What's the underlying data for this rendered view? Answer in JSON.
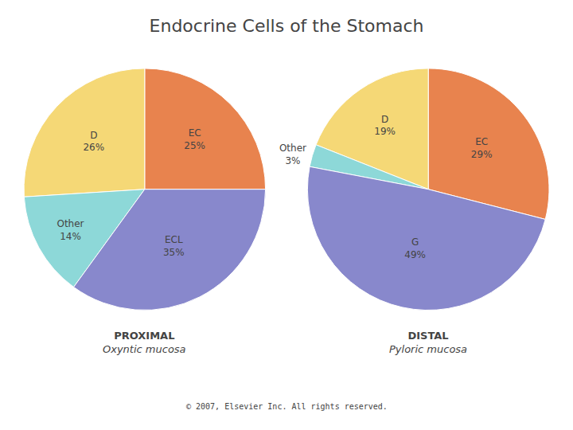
{
  "title": "Endocrine Cells of the Stomach",
  "annotations": [
    "© 2007, Elsevier Inc. All rights reserved."
  ],
  "chart_data": [
    {
      "type": "pie",
      "title": "PROXIMAL",
      "subtitle": "Oxyntic mucosa",
      "categories": [
        "EC",
        "D",
        "Other",
        "ECL"
      ],
      "values": [
        25,
        26,
        14,
        35
      ],
      "value_labels": [
        "25%",
        "26%",
        "14%",
        "35%"
      ],
      "colors": [
        "#e8834e",
        "#f5d876",
        "#8dd8d8",
        "#8888cc"
      ]
    },
    {
      "type": "pie",
      "title": "DISTAL",
      "subtitle": "Pyloric mucosa",
      "categories": [
        "EC",
        "D",
        "Other",
        "G"
      ],
      "values": [
        29,
        19,
        3,
        49
      ],
      "value_labels": [
        "29%",
        "19%",
        "3%",
        "49%"
      ],
      "colors": [
        "#e8834e",
        "#f5d876",
        "#8dd8d8",
        "#8888cc"
      ]
    }
  ]
}
